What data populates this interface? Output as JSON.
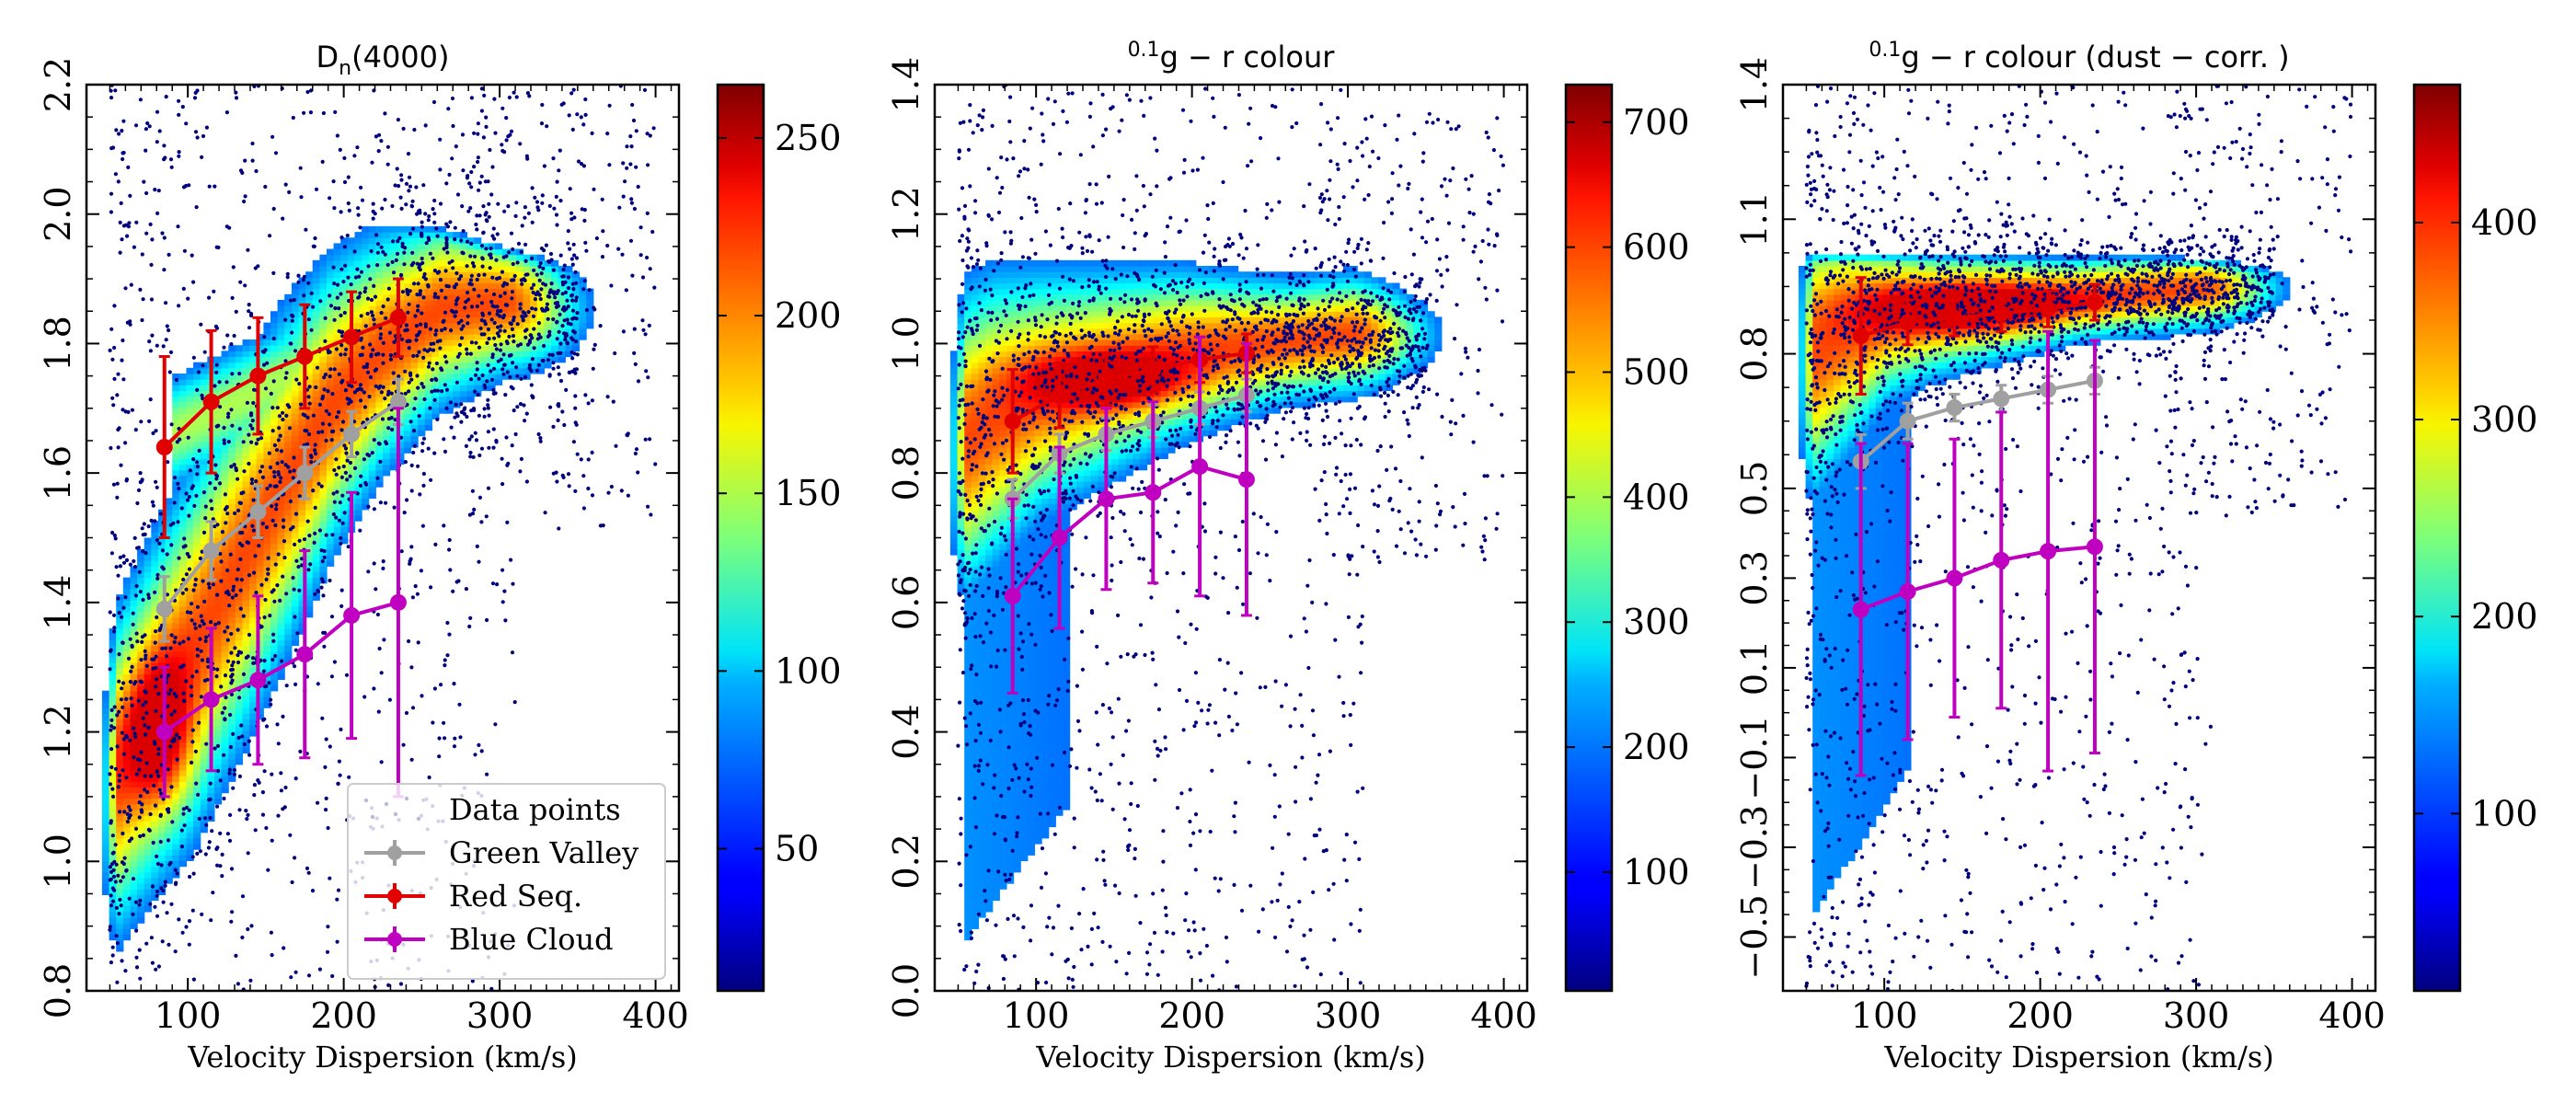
{
  "chart_data": [
    {
      "type": "scatter",
      "title": "D_n(4000)",
      "title_main": "D",
      "title_sub": "n",
      "title_rest": "(4000)",
      "xlabel": "Velocity Dispersion (km/s)",
      "ylabel": "",
      "xlim": [
        35,
        415
      ],
      "ylim": [
        0.8,
        2.2
      ],
      "xticks": [
        100,
        200,
        300,
        400
      ],
      "yticks": [
        0.8,
        1.0,
        1.2,
        1.4,
        1.6,
        1.8,
        2.0,
        2.2
      ],
      "ytick_labels": [
        "0.8",
        "1.0",
        "1.2",
        "1.4",
        "1.6",
        "1.8",
        "2.0",
        "2.2"
      ],
      "density": {
        "ridge": [
          [
            45,
            1.1
          ],
          [
            70,
            1.2
          ],
          [
            100,
            1.32
          ],
          [
            130,
            1.45
          ],
          [
            160,
            1.58
          ],
          [
            190,
            1.7
          ],
          [
            220,
            1.78
          ],
          [
            260,
            1.85
          ],
          [
            300,
            1.86
          ],
          [
            340,
            1.85
          ]
        ],
        "spread": [
          0.13,
          0.14,
          0.15,
          0.15,
          0.14,
          0.12,
          0.1,
          0.08,
          0.06,
          0.05
        ],
        "upper_limit": [
          1.92,
          1.98,
          1.99,
          1.99,
          1.99,
          1.99,
          1.97,
          1.95,
          1.92,
          1.9
        ],
        "core": {
          "x": 80,
          "y": 1.19,
          "sx": 14,
          "sy": 0.08
        },
        "sequence": {
          "x1": 90,
          "x2": 260,
          "y1": 1.66,
          "y2": 1.86,
          "sy": 0.05
        },
        "seed": 11
      },
      "colorbar": {
        "min": 10,
        "max": 265,
        "ticks": [
          50,
          100,
          150,
          200,
          250
        ]
      },
      "series": [
        {
          "name": "Green Valley",
          "color": "#a0a0a0",
          "x": [
            85,
            115,
            145,
            175,
            205,
            235
          ],
          "y": [
            1.39,
            1.48,
            1.54,
            1.6,
            1.66,
            1.71
          ],
          "err": [
            0.05,
            0.045,
            0.04,
            0.04,
            0.035,
            0.035
          ]
        },
        {
          "name": "Red Seq.",
          "color": "#e00000",
          "x": [
            85,
            115,
            145,
            175,
            205,
            235
          ],
          "y": [
            1.64,
            1.71,
            1.75,
            1.78,
            1.81,
            1.84
          ],
          "err": [
            0.14,
            0.11,
            0.09,
            0.08,
            0.07,
            0.06
          ]
        },
        {
          "name": "Blue Cloud",
          "color": "#c000c0",
          "x": [
            85,
            115,
            145,
            175,
            205,
            235
          ],
          "y": [
            1.2,
            1.25,
            1.28,
            1.32,
            1.38,
            1.4
          ],
          "err": [
            0.1,
            0.11,
            0.13,
            0.16,
            0.19,
            0.3
          ]
        }
      ],
      "legend": {
        "position": "lower-right",
        "entries": [
          "Data points",
          "Green Valley",
          "Red Seq.",
          "Blue Cloud"
        ]
      }
    },
    {
      "type": "scatter",
      "title": "0.1g − r colour",
      "title_sup": "0.1",
      "title_rest": "g − r colour",
      "xlabel": "Velocity Dispersion (km/s)",
      "ylabel": "",
      "xlim": [
        35,
        415
      ],
      "ylim": [
        0.0,
        1.4
      ],
      "xticks": [
        100,
        200,
        300,
        400
      ],
      "yticks": [
        0.0,
        0.2,
        0.4,
        0.6,
        0.8,
        1.0,
        1.2,
        1.4
      ],
      "ytick_labels": [
        "0.0",
        "0.2",
        "0.4",
        "0.6",
        "0.8",
        "1.0",
        "1.2",
        "1.4"
      ],
      "density": {
        "ridge": [
          [
            45,
            0.83
          ],
          [
            70,
            0.88
          ],
          [
            100,
            0.92
          ],
          [
            130,
            0.94
          ],
          [
            160,
            0.96
          ],
          [
            190,
            0.98
          ],
          [
            220,
            0.99
          ],
          [
            260,
            1.0
          ],
          [
            300,
            1.01
          ],
          [
            340,
            1.01
          ]
        ],
        "spread": [
          0.13,
          0.12,
          0.1,
          0.09,
          0.08,
          0.07,
          0.06,
          0.05,
          0.05,
          0.04
        ],
        "lower_tail": {
          "x1": 45,
          "x2": 250,
          "y1": 0.05,
          "y2": 0.7
        },
        "core": {
          "x": 145,
          "y": 0.94,
          "sx": 35,
          "sy": 0.03
        },
        "seed": 23
      },
      "colorbar": {
        "min": 5,
        "max": 730,
        "ticks": [
          100,
          200,
          300,
          400,
          500,
          600,
          700
        ]
      },
      "series": [
        {
          "name": "Green Valley",
          "color": "#a0a0a0",
          "x": [
            85,
            115,
            145,
            175,
            205,
            235
          ],
          "y": [
            0.76,
            0.83,
            0.86,
            0.88,
            0.9,
            0.92
          ],
          "err": [
            0.03,
            0.03,
            0.025,
            0.025,
            0.025,
            0.025
          ]
        },
        {
          "name": "Red Seq.",
          "color": "#e00000",
          "x": [
            85,
            115,
            145,
            175,
            205,
            235
          ],
          "y": [
            0.88,
            0.92,
            0.945,
            0.96,
            0.975,
            0.985
          ],
          "err": [
            0.08,
            0.05,
            0.04,
            0.035,
            0.035,
            0.03
          ]
        },
        {
          "name": "Blue Cloud",
          "color": "#c000c0",
          "x": [
            85,
            115,
            145,
            175,
            205,
            235
          ],
          "y": [
            0.61,
            0.7,
            0.76,
            0.77,
            0.81,
            0.79
          ],
          "err": [
            0.15,
            0.14,
            0.14,
            0.14,
            0.2,
            0.21
          ]
        }
      ]
    },
    {
      "type": "scatter",
      "title": "0.1g − r colour (dust − corr.)",
      "title_sup": "0.1",
      "title_rest": "g − r colour (dust − corr. )",
      "xlabel": "Velocity Dispersion (km/s)",
      "ylabel": "",
      "xlim": [
        35,
        415
      ],
      "ylim": [
        -0.62,
        1.4
      ],
      "xticks": [
        100,
        200,
        300,
        400
      ],
      "yticks": [
        -0.5,
        -0.3,
        -0.1,
        0.1,
        0.3,
        0.5,
        0.8,
        1.1,
        1.4
      ],
      "ytick_labels": [
        "−0.5",
        "−0.3",
        "−0.1",
        "0.1",
        "0.3",
        "0.5",
        "0.8",
        "1.1",
        "1.4"
      ],
      "density": {
        "ridge": [
          [
            45,
            0.78
          ],
          [
            70,
            0.84
          ],
          [
            100,
            0.88
          ],
          [
            130,
            0.89
          ],
          [
            160,
            0.9
          ],
          [
            190,
            0.91
          ],
          [
            220,
            0.92
          ],
          [
            260,
            0.93
          ],
          [
            300,
            0.94
          ],
          [
            340,
            0.94
          ]
        ],
        "spread": [
          0.18,
          0.15,
          0.1,
          0.08,
          0.07,
          0.06,
          0.05,
          0.05,
          0.05,
          0.04
        ],
        "upper_limit": [
          0.99,
          0.99,
          0.99,
          0.99,
          0.99,
          0.99,
          0.99,
          0.99,
          0.98,
          0.97
        ],
        "lower_tail": {
          "x1": 45,
          "x2": 240,
          "y1": -0.5,
          "y2": 0.55
        },
        "core": {
          "x": 150,
          "y": 0.9,
          "sx": 45,
          "sy": 0.04
        },
        "seed": 37
      },
      "colorbar": {
        "min": 10,
        "max": 470,
        "ticks": [
          100,
          200,
          300,
          400
        ]
      },
      "series": [
        {
          "name": "Green Valley",
          "color": "#a0a0a0",
          "x": [
            85,
            115,
            145,
            175,
            205,
            235
          ],
          "y": [
            0.56,
            0.65,
            0.68,
            0.7,
            0.72,
            0.74
          ],
          "err": [
            0.06,
            0.04,
            0.03,
            0.03,
            0.03,
            0.03
          ]
        },
        {
          "name": "Red Seq.",
          "color": "#e00000",
          "x": [
            85,
            115,
            145,
            175,
            205,
            235
          ],
          "y": [
            0.84,
            0.87,
            0.88,
            0.89,
            0.9,
            0.915
          ],
          "err": [
            0.13,
            0.05,
            0.04,
            0.04,
            0.04,
            0.04
          ]
        },
        {
          "name": "Blue Cloud",
          "color": "#c000c0",
          "x": [
            85,
            115,
            145,
            175,
            205,
            235
          ],
          "y": [
            0.23,
            0.27,
            0.3,
            0.34,
            0.36,
            0.37
          ],
          "err": [
            0.37,
            0.33,
            0.31,
            0.33,
            0.49,
            0.46
          ]
        }
      ]
    }
  ]
}
